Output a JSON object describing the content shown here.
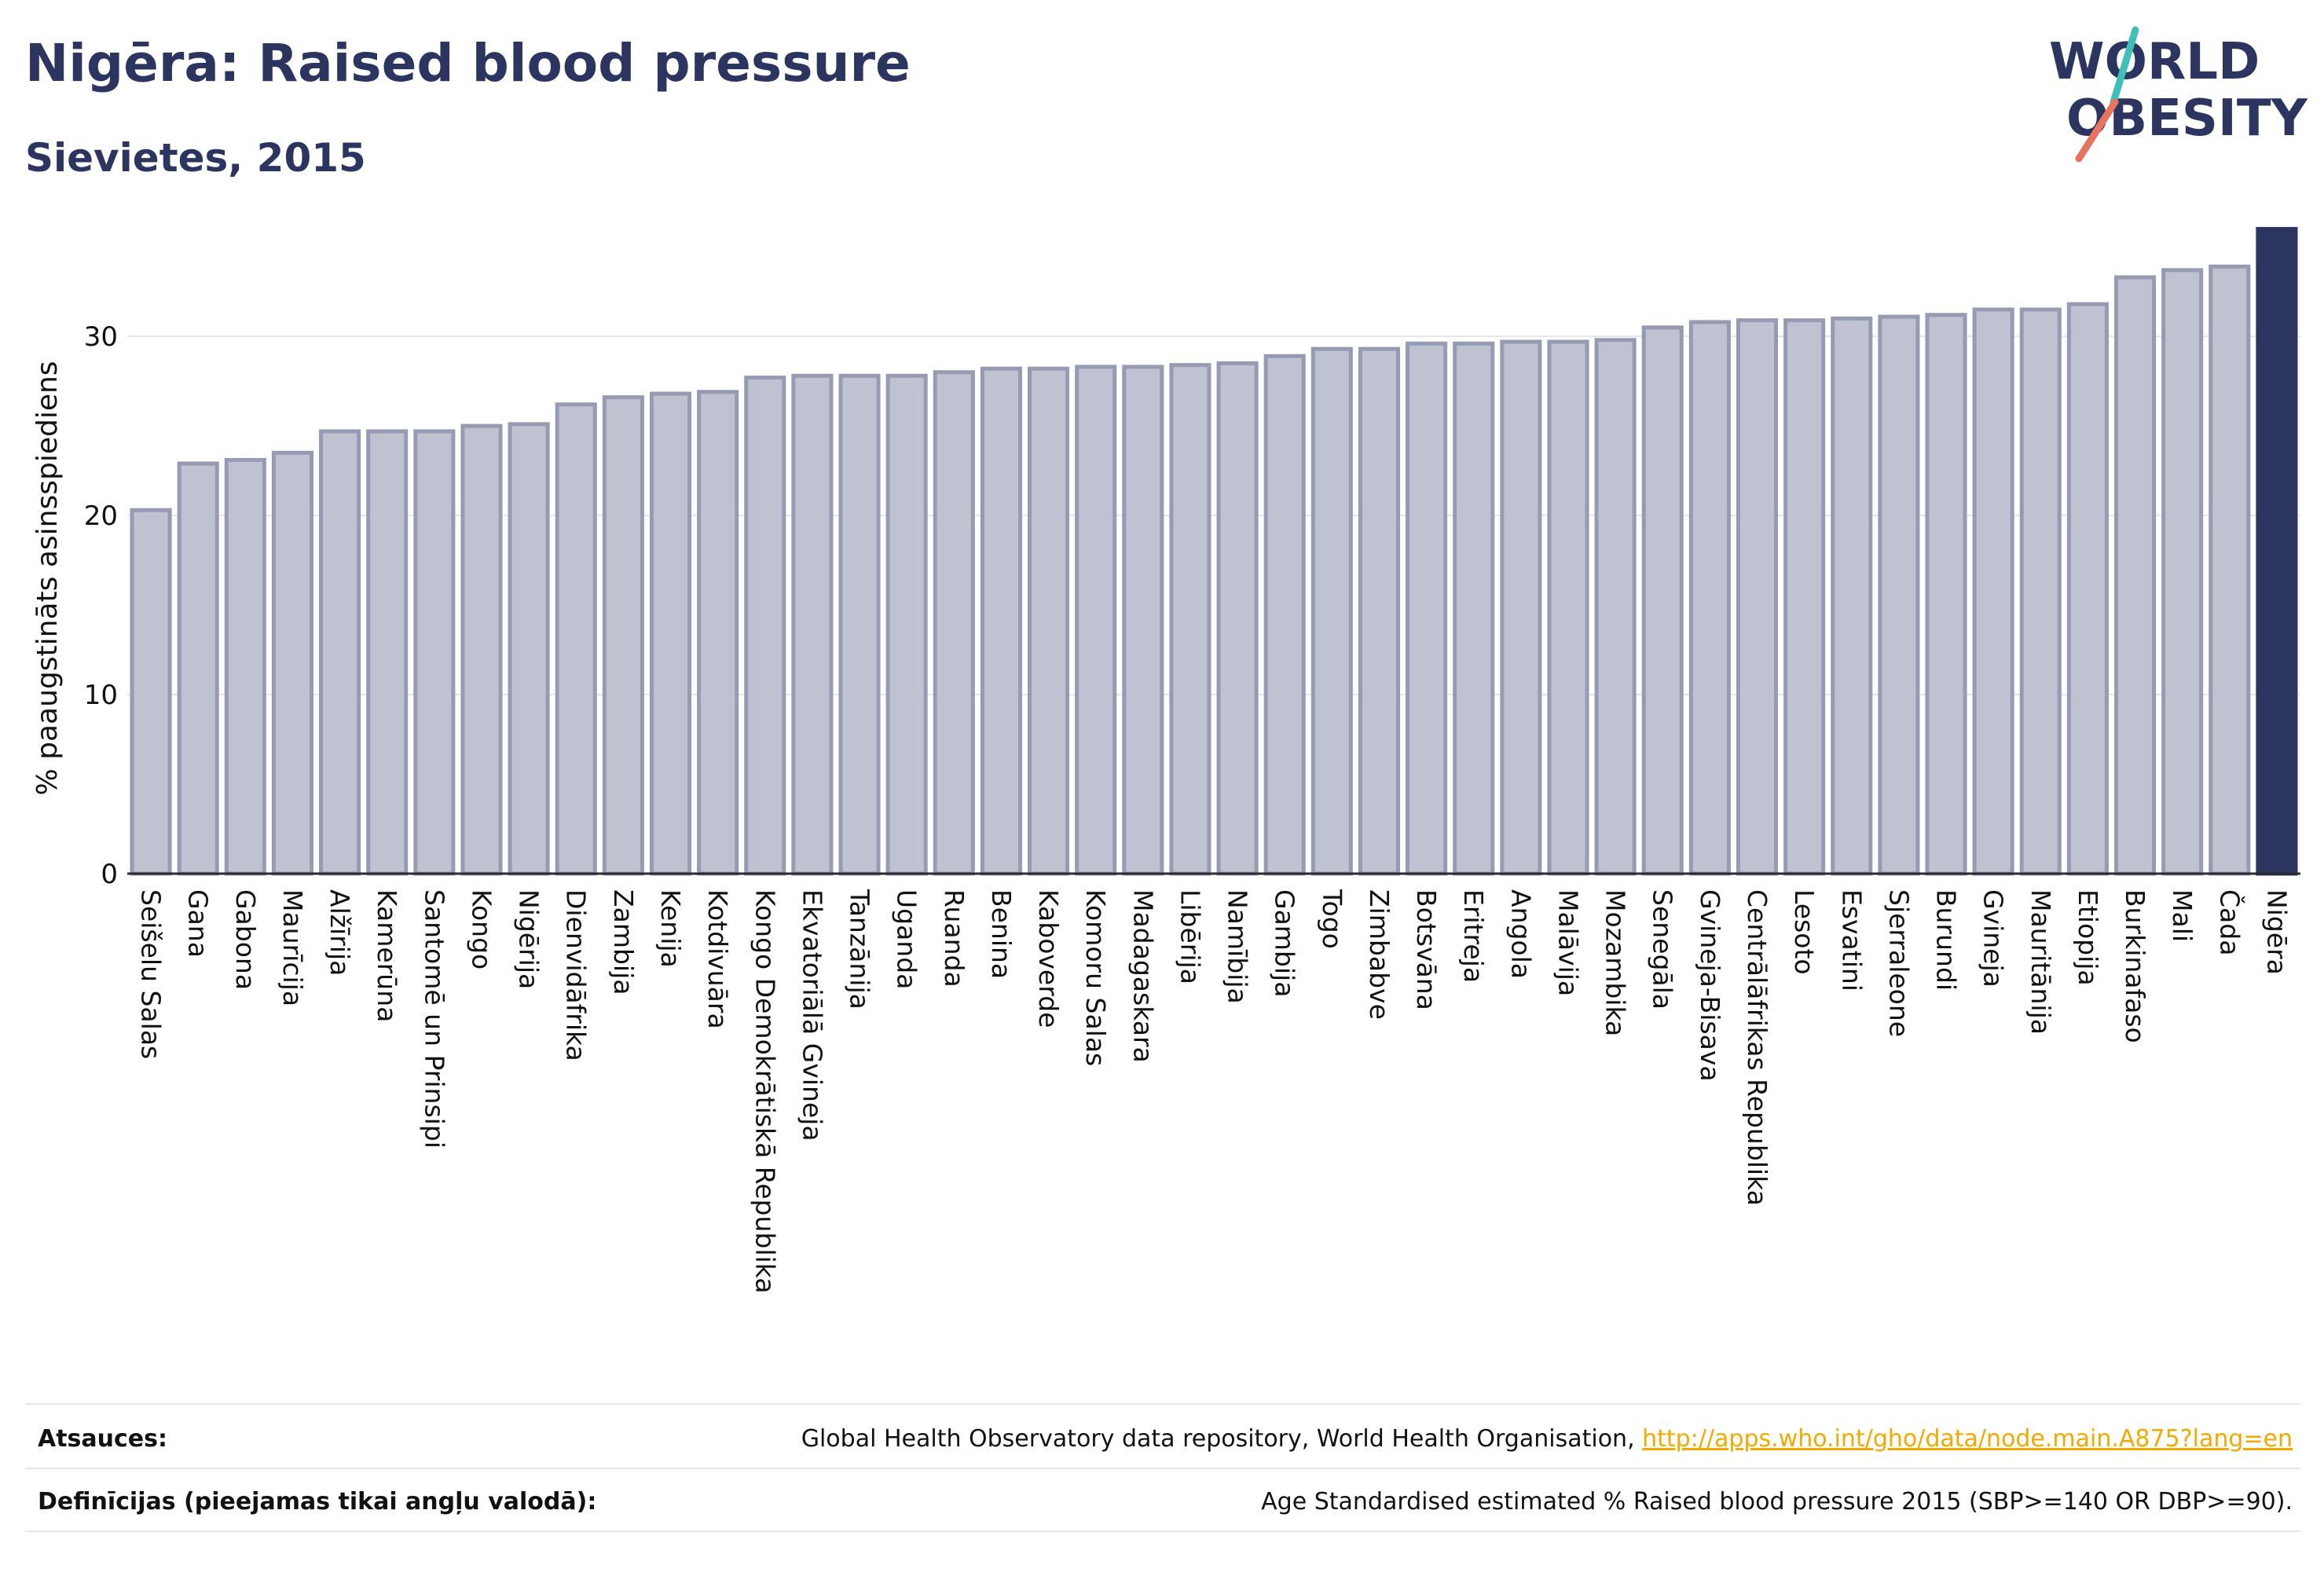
{
  "header": {
    "title": "Nigēra: Raised blood pressure",
    "subtitle": "Sievietes, 2015"
  },
  "logo": {
    "line1": "WORLD",
    "line2": "OBESITY",
    "colors": {
      "text": "#2b3560",
      "slash_teal": "#3fbfb8",
      "slash_coral": "#e8735f"
    }
  },
  "chart_data": {
    "type": "bar",
    "ylabel": "% paaugstināts asinsspiediens",
    "xlabel": "",
    "ylim": [
      0,
      36.5
    ],
    "yticks": [
      0,
      10,
      20,
      30
    ],
    "grid": true,
    "highlight": "Nigēra",
    "colors": {
      "bar": "#bfc2d0",
      "bar_edge": "#969bb3",
      "highlight": "#2b3560"
    },
    "categories": [
      "Seišelu Salas",
      "Gana",
      "Gabona",
      "Maurīcija",
      "Alžīrija",
      "Kamerūna",
      "Santomē un Prinsipi",
      "Kongo",
      "Nigērija",
      "Dienvidāfrika",
      "Zambija",
      "Kenija",
      "Kotdivuāra",
      "Kongo Demokrātiskā Republika",
      "Ekvatoriālā Gvineja",
      "Tanzānija",
      "Uganda",
      "Ruanda",
      "Benina",
      "Kaboverde",
      "Komoru Salas",
      "Madagaskara",
      "Libērija",
      "Namībija",
      "Gambija",
      "Togo",
      "Zimbabve",
      "Botsvāna",
      "Eritreja",
      "Angola",
      "Malāvija",
      "Mozambika",
      "Senegāla",
      "Gvineja-Bisava",
      "Centrālāfrikas Republika",
      "Lesoto",
      "Esvatini",
      "Sjerraleone",
      "Burundi",
      "Gvineja",
      "Mauritānija",
      "Etiopija",
      "Burkinafaso",
      "Mali",
      "Čada",
      "Nigēra"
    ],
    "values": [
      20.3,
      22.9,
      23.1,
      23.5,
      24.7,
      24.7,
      24.7,
      25.0,
      25.1,
      26.2,
      26.6,
      26.8,
      26.9,
      27.7,
      27.8,
      27.8,
      27.8,
      28.0,
      28.2,
      28.2,
      28.3,
      28.3,
      28.4,
      28.5,
      28.9,
      29.3,
      29.3,
      29.6,
      29.6,
      29.7,
      29.7,
      29.8,
      30.5,
      30.8,
      30.9,
      30.9,
      31.0,
      31.1,
      31.2,
      31.5,
      31.5,
      31.8,
      33.3,
      33.7,
      33.9,
      36.0
    ]
  },
  "footer": {
    "sources_label": "Atsauces:",
    "sources_text": "Global Health Observatory data repository, World Health Organisation, ",
    "sources_link": "http://apps.who.int/gho/data/node.main.A875?lang=en",
    "definitions_label": "Definīcijas (pieejamas tikai angļu valodā):",
    "definitions_text": "Age Standardised estimated % Raised blood pressure 2015 (SBP>=140 OR DBP>=90)."
  }
}
